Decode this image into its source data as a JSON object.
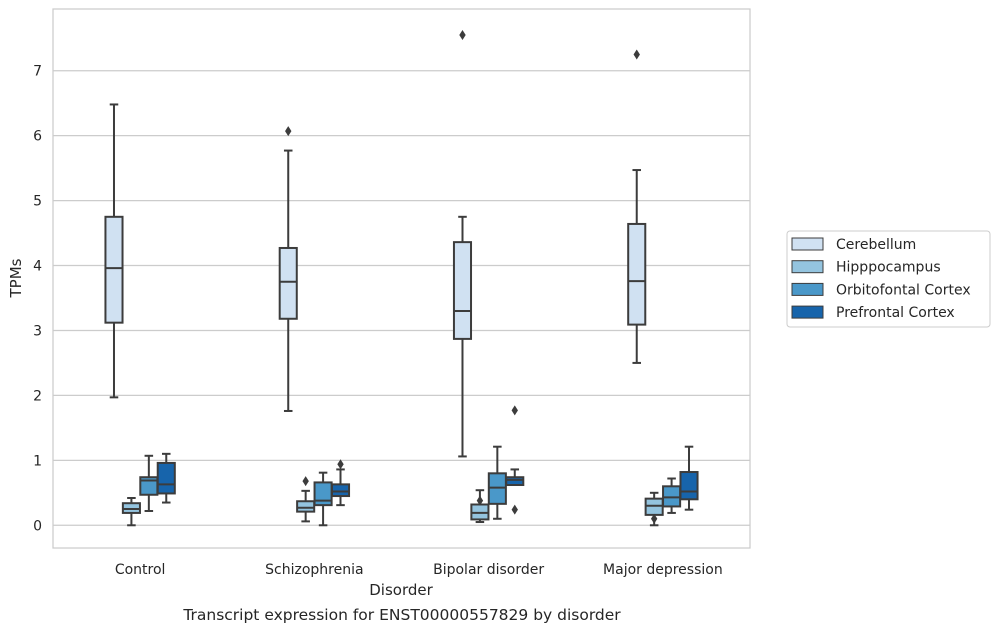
{
  "chart_data": {
    "type": "boxplot",
    "title": "",
    "xlabel": "Disorder",
    "ylabel": "TPMs",
    "ylim": [
      -0.35,
      7.95
    ],
    "yticks": [
      0,
      1,
      2,
      3,
      4,
      5,
      6,
      7
    ],
    "categories": [
      "Control",
      "Schizophrenia",
      "Bipolar disorder",
      "Major depression"
    ],
    "grid": "horizontal",
    "legend_position": "right",
    "series": [
      {
        "name": "Cerebellum",
        "color": "#d0e1f2",
        "boxes": [
          {
            "whislo": 1.97,
            "q1": 3.12,
            "med": 3.96,
            "q3": 4.75,
            "whishi": 6.48,
            "fliers": []
          },
          {
            "whislo": 1.76,
            "q1": 3.18,
            "med": 3.75,
            "q3": 4.27,
            "whishi": 5.77,
            "fliers": [
              6.07
            ]
          },
          {
            "whislo": 1.06,
            "q1": 2.87,
            "med": 3.3,
            "q3": 4.36,
            "whishi": 4.75,
            "fliers": [
              7.55
            ]
          },
          {
            "whislo": 2.5,
            "q1": 3.09,
            "med": 3.76,
            "q3": 4.64,
            "whishi": 5.47,
            "fliers": [
              7.25
            ]
          }
        ]
      },
      {
        "name": "Hipppocampus",
        "color": "#94c4df",
        "boxes": [
          {
            "whislo": 0.0,
            "q1": 0.19,
            "med": 0.25,
            "q3": 0.34,
            "whishi": 0.42,
            "fliers": []
          },
          {
            "whislo": 0.06,
            "q1": 0.21,
            "med": 0.27,
            "q3": 0.37,
            "whishi": 0.53,
            "fliers": [
              0.68
            ]
          },
          {
            "whislo": 0.05,
            "q1": 0.09,
            "med": 0.19,
            "q3": 0.32,
            "whishi": 0.54,
            "fliers": [
              0.38
            ]
          },
          {
            "whislo": 0.0,
            "q1": 0.16,
            "med": 0.3,
            "q3": 0.41,
            "whishi": 0.5,
            "fliers": [
              0.1
            ]
          }
        ]
      },
      {
        "name": "Orbitofontal Cortex",
        "color": "#4a98c9",
        "boxes": [
          {
            "whislo": 0.22,
            "q1": 0.47,
            "med": 0.69,
            "q3": 0.74,
            "whishi": 1.07,
            "fliers": []
          },
          {
            "whislo": 0.0,
            "q1": 0.31,
            "med": 0.38,
            "q3": 0.66,
            "whishi": 0.81,
            "fliers": []
          },
          {
            "whislo": 0.1,
            "q1": 0.33,
            "med": 0.58,
            "q3": 0.8,
            "whishi": 1.21,
            "fliers": []
          },
          {
            "whislo": 0.19,
            "q1": 0.29,
            "med": 0.43,
            "q3": 0.6,
            "whishi": 0.72,
            "fliers": []
          }
        ]
      },
      {
        "name": "Prefrontal Cortex",
        "color": "#1764ab",
        "boxes": [
          {
            "whislo": 0.35,
            "q1": 0.49,
            "med": 0.63,
            "q3": 0.96,
            "whishi": 1.1,
            "fliers": []
          },
          {
            "whislo": 0.31,
            "q1": 0.45,
            "med": 0.52,
            "q3": 0.63,
            "whishi": 0.86,
            "fliers": [
              0.94
            ]
          },
          {
            "whislo": 0.62,
            "q1": 0.62,
            "med": 0.7,
            "q3": 0.74,
            "whishi": 0.86,
            "fliers": [
              0.24,
              1.77
            ]
          },
          {
            "whislo": 0.24,
            "q1": 0.4,
            "med": 0.52,
            "q3": 0.82,
            "whishi": 1.21,
            "fliers": []
          }
        ]
      }
    ]
  },
  "caption": "Transcript expression for ENST00000557829 by disorder"
}
